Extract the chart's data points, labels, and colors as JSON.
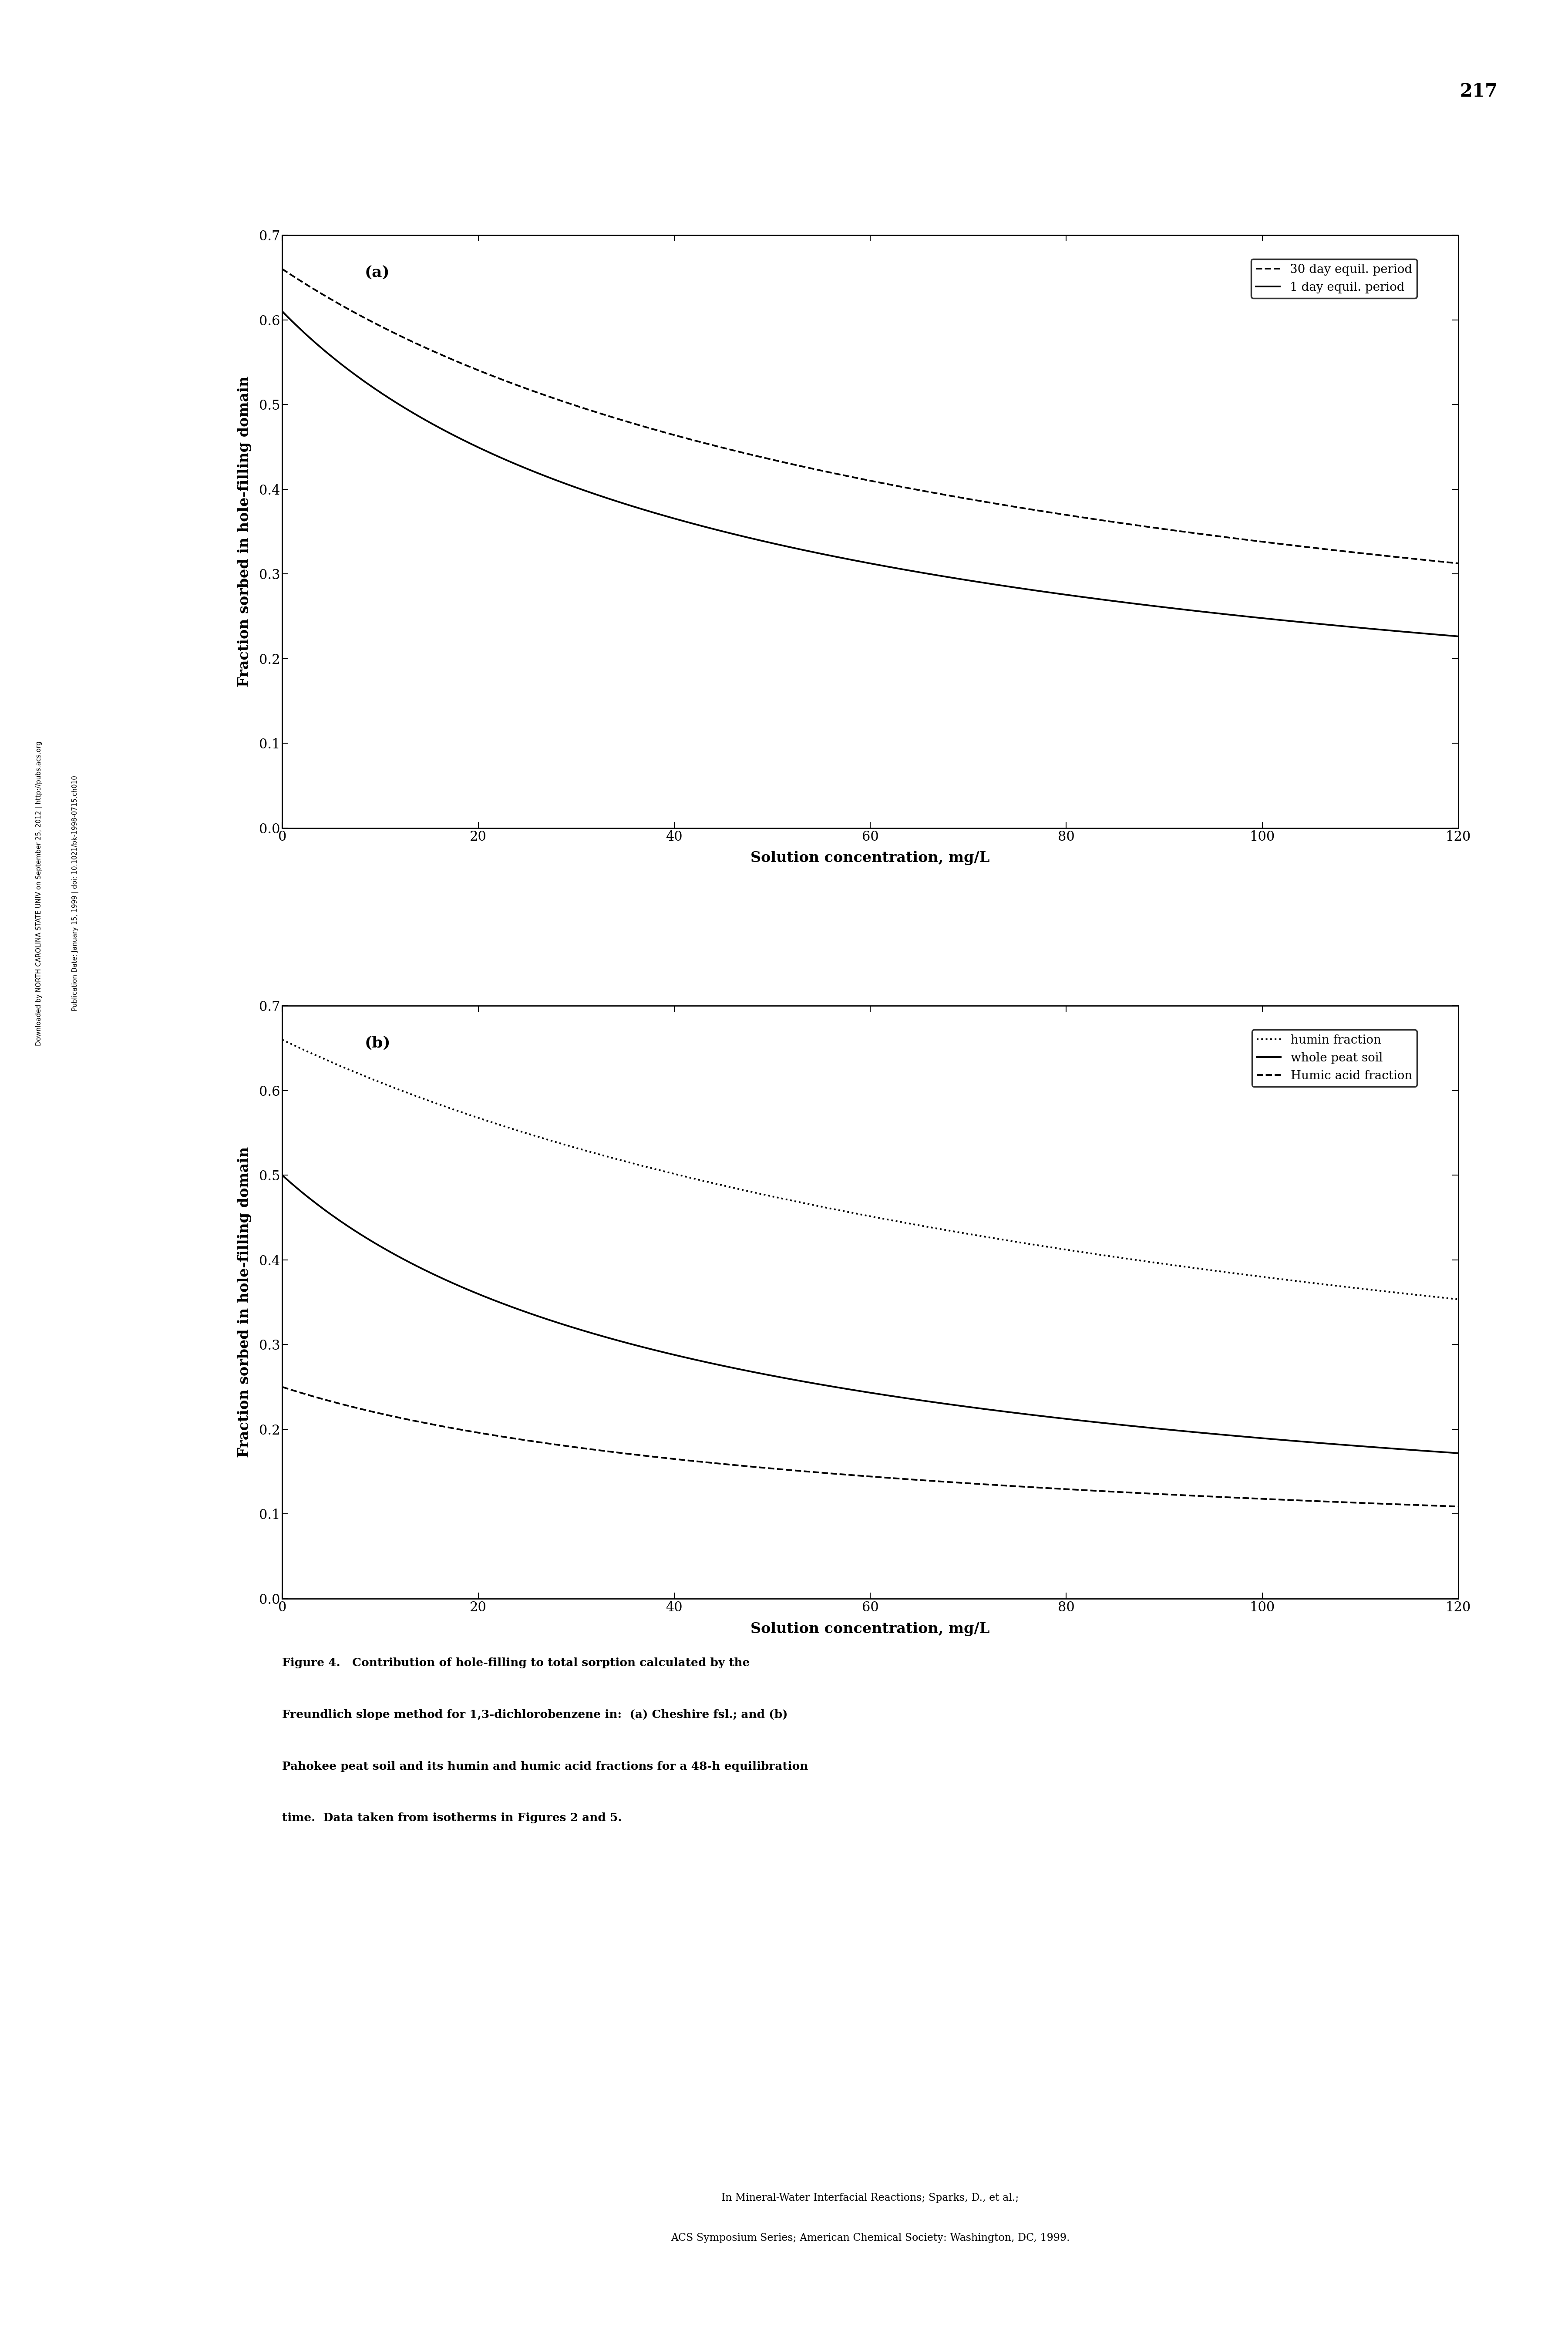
{
  "panel_a": {
    "label": "(a)",
    "curves": [
      {
        "name": "30 day equil. period",
        "linestyle": "--",
        "linewidth": 2.8,
        "color": "#000000",
        "y0": 0.66,
        "k": 0.018,
        "n": 0.65
      },
      {
        "name": "1 day equil. period",
        "linestyle": "-",
        "linewidth": 2.8,
        "color": "#000000",
        "y0": 0.61,
        "k": 0.03,
        "n": 0.65
      }
    ]
  },
  "panel_b": {
    "label": "(b)",
    "curves": [
      {
        "name": "humin fraction",
        "linestyle": ":",
        "linewidth": 2.8,
        "color": "#000000",
        "y0": 0.66,
        "k": 0.012,
        "n": 0.7
      },
      {
        "name": "whole peat soil",
        "linestyle": "-",
        "linewidth": 2.8,
        "color": "#000000",
        "y0": 0.5,
        "k": 0.03,
        "n": 0.7
      },
      {
        "name": "Humic acid fraction",
        "linestyle": "--",
        "linewidth": 2.8,
        "color": "#000000",
        "y0": 0.25,
        "k": 0.025,
        "n": 0.6
      }
    ]
  },
  "xlim": [
    0,
    120
  ],
  "ylim": [
    0.0,
    0.7
  ],
  "xticks": [
    0,
    20,
    40,
    60,
    80,
    100,
    120
  ],
  "yticks": [
    0.0,
    0.1,
    0.2,
    0.3,
    0.4,
    0.5,
    0.6,
    0.7
  ],
  "xlabel": "Solution concentration, mg/L",
  "ylabel": "Fraction sorbed in hole-filling domain",
  "page_number": "217",
  "side_text_1": "Downloaded by NORTH CAROLINA STATE UNIV on September 25, 2012 | http://pubs.acs.org",
  "side_text_2": "Publication Date: January 15, 1999 | doi: 10.1021/bk-1998-0715.ch010",
  "caption_bold": "Figure 4.",
  "caption_rest_1": "   Contribution of hole-filling to total sorption calculated by the",
  "caption_line2": "Freundlich slope method for 1,3-dichlorobenzene in:  (a) Cheshire fsl.; and (b)",
  "caption_line3": "Pahokee peat soil and its humin and humic acid fractions for a 48-h equilibration",
  "caption_line4": "time.  Data taken from isotherms in Figures 2 and 5.",
  "bottom_text_1": "In Mineral-Water Interfacial Reactions; Sparks, D., et al.;",
  "bottom_text_2": "ACS Symposium Series; American Chemical Society: Washington, DC, 1999."
}
